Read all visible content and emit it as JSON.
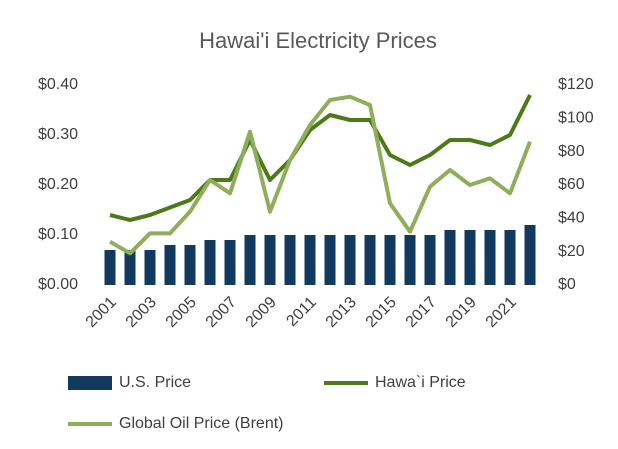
{
  "chart_data": {
    "type": "bar-line",
    "title": "Hawai'i Electricity Prices",
    "categories": [
      "2001",
      null,
      "2003",
      null,
      "2005",
      null,
      "2007",
      null,
      "2009",
      null,
      "2011",
      null,
      "2013",
      null,
      "2015",
      null,
      "2017",
      null,
      "2019",
      null,
      "2021",
      null
    ],
    "series": [
      {
        "name": "U.S. Price",
        "type": "bar",
        "color": "#123a5e",
        "values": [
          0.07,
          0.07,
          0.07,
          0.08,
          0.08,
          0.09,
          0.09,
          0.1,
          0.1,
          0.1,
          0.1,
          0.1,
          0.1,
          0.1,
          0.1,
          0.1,
          0.1,
          0.11,
          0.11,
          0.11,
          0.11,
          0.12
        ]
      },
      {
        "name": "Hawa`i Price",
        "type": "line",
        "color": "#4c7a16",
        "values": [
          0.14,
          0.13,
          0.14,
          0.155,
          0.17,
          0.21,
          0.21,
          0.29,
          0.21,
          0.25,
          0.31,
          0.34,
          0.33,
          0.33,
          0.26,
          0.24,
          0.26,
          0.29,
          0.29,
          0.28,
          0.3,
          0.38
        ]
      },
      {
        "name": "Global Oil Price (Brent)",
        "type": "line",
        "axis": "y2",
        "color": "#8fae5c",
        "values": [
          26,
          19,
          31,
          31,
          44,
          63,
          55,
          92,
          44,
          75,
          96,
          111,
          113,
          108,
          49,
          32,
          59,
          69,
          60,
          64,
          55,
          86
        ]
      }
    ],
    "ylim": [
      0,
      0.4
    ],
    "yticks": [
      {
        "value": 0,
        "label": "$0.00"
      },
      {
        "value": 0.1,
        "label": "$0.10"
      },
      {
        "value": 0.2,
        "label": "$0.20"
      },
      {
        "value": 0.3,
        "label": "$0.30"
      },
      {
        "value": 0.4,
        "label": "$0.40"
      }
    ],
    "y2lim": [
      0,
      120
    ],
    "y2ticks": [
      {
        "value": 0,
        "label": "$0"
      },
      {
        "value": 20,
        "label": "$20"
      },
      {
        "value": 40,
        "label": "$40"
      },
      {
        "value": 60,
        "label": "$60"
      },
      {
        "value": 80,
        "label": "$80"
      },
      {
        "value": 100,
        "label": "$100"
      },
      {
        "value": 120,
        "label": "$120"
      }
    ],
    "grid": false,
    "legend": "bottom"
  }
}
